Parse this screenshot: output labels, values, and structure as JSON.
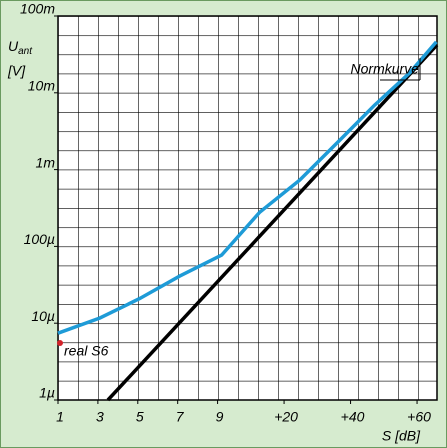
{
  "chart_data": {
    "type": "line",
    "ylabel_main": "U",
    "ylabel_sub": "ant",
    "ylabel_unit": "[V]",
    "xlabel": "S [dB]",
    "log_y": true,
    "xlim": [
      -48,
      66
    ],
    "xticks": [
      {
        "value": -48,
        "label": "1"
      },
      {
        "value": -36,
        "label": "3"
      },
      {
        "value": -24,
        "label": "5"
      },
      {
        "value": -12,
        "label": "7"
      },
      {
        "value": 0,
        "label": "9"
      },
      {
        "value": 20,
        "label": "+20"
      },
      {
        "value": 40,
        "label": "+40"
      },
      {
        "value": 60,
        "label": "+60"
      }
    ],
    "ylim": [
      1e-06,
      0.1
    ],
    "yticks": [
      {
        "value": 1e-06,
        "label": "1µ"
      },
      {
        "value": 1e-05,
        "label": "10µ"
      },
      {
        "value": 0.0001,
        "label": "100µ"
      },
      {
        "value": 0.001,
        "label": "1m"
      },
      {
        "value": 0.01,
        "label": "10m"
      },
      {
        "value": 0.1,
        "label": "100m"
      }
    ],
    "series": [
      {
        "name": "Normkurve",
        "color": "#000000",
        "x": [
          -33,
          66
        ],
        "values": [
          1e-06,
          0.042
        ]
      },
      {
        "name": "real S6",
        "color": "#1e9bd7",
        "x": [
          -48,
          -35.4,
          -23.4,
          -11.4,
          1.2,
          12.7,
          24.7,
          36.7,
          47.2,
          57.7,
          65.8
        ],
        "values": [
          7.4e-06,
          1.17e-05,
          2.1e-05,
          4.1e-05,
          7.7e-05,
          0.00028,
          0.00073,
          0.0024,
          0.0069,
          0.018,
          0.046
        ]
      }
    ]
  }
}
